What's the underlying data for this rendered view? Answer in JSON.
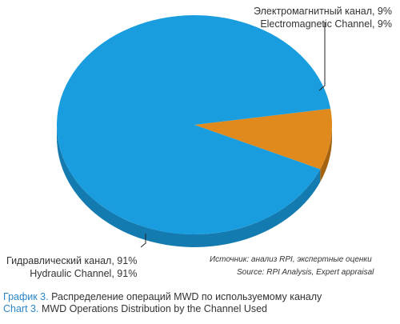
{
  "chart_data": {
    "type": "pie",
    "slices": [
      {
        "label_ru": "Электромагнитный канал, 9%",
        "label_en": "Electromagnetic Channel, 9%",
        "value": 9,
        "color": "#e08a1e",
        "side_color": "#a5620f"
      },
      {
        "label_ru": "Гидравлический канал, 91%",
        "label_en": "Hydraulic Channel, 91%",
        "value": 91,
        "color": "#1a9ddf",
        "side_color": "#137bb0"
      }
    ],
    "start_angle_deg": -8.5,
    "style": "3d-pie"
  },
  "source": {
    "ru": "Источник: анализ RPI, экспертные оценки",
    "en": "Source: RPI Analysis, Expert appraisal"
  },
  "captions": [
    {
      "lead": "График 3.",
      "text": " Распределение операций MWD по используемому каналу"
    },
    {
      "lead": "Chart 3.",
      "text": " MWD Operations Distribution by the Channel Used"
    }
  ]
}
